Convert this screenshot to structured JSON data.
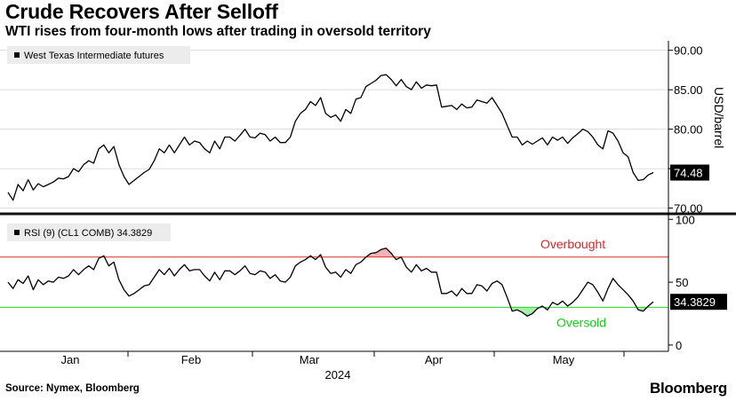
{
  "header": {
    "title": "Crude Recovers After Selloff",
    "subtitle": "WTI rises from four-month lows after trading in oversold territory"
  },
  "footer": {
    "source": "Source: Nymex, Bloomberg",
    "brand": "Bloomberg"
  },
  "chart_data": [
    {
      "type": "line",
      "title": "West Texas Intermediate futures",
      "legend": "West Texas Intermediate futures",
      "ylabel": "USD/barrel",
      "ylim": [
        69.5,
        91.2
      ],
      "yticks": [
        70,
        75,
        80,
        85,
        90
      ],
      "ytick_labels": [
        "70.00",
        "75.00",
        "80.00",
        "85.00",
        "90.00"
      ],
      "last_value_label": "74.48",
      "series": [
        {
          "name": "West Texas Intermediate futures",
          "values": [
            72.0,
            71.0,
            73.0,
            72.2,
            73.6,
            72.3,
            73.1,
            72.7,
            73.0,
            73.3,
            73.8,
            73.7,
            74.0,
            75.0,
            74.6,
            75.5,
            76.0,
            75.7,
            77.5,
            78.0,
            77.0,
            77.8,
            75.5,
            74.0,
            73.0,
            73.5,
            74.0,
            74.5,
            74.9,
            76.0,
            77.5,
            77.0,
            78.0,
            77.0,
            78.0,
            79.0,
            78.0,
            78.5,
            78.3,
            77.5,
            77.0,
            78.5,
            77.5,
            79.0,
            79.0,
            78.5,
            79.2,
            80.0,
            79.0,
            78.9,
            79.5,
            79.3,
            78.5,
            79.0,
            78.3,
            78.3,
            79.0,
            81.0,
            82.0,
            82.5,
            83.5,
            83.0,
            84.0,
            82.0,
            81.5,
            81.8,
            81.0,
            82.5,
            82.0,
            83.8,
            84.0,
            85.4,
            85.8,
            86.2,
            86.8,
            86.9,
            86.3,
            85.5,
            86.3,
            85.4,
            85.0,
            86.0,
            85.2,
            85.6,
            85.5,
            85.6,
            82.8,
            82.9,
            83.0,
            82.5,
            83.2,
            82.7,
            82.8,
            83.7,
            83.5,
            83.3,
            84.0,
            83.0,
            82.0,
            80.5,
            79.0,
            79.0,
            78.0,
            78.5,
            78.1,
            78.5,
            78.9,
            78.0,
            79.0,
            78.6,
            79.0,
            78.2,
            78.9,
            79.4,
            80.0,
            79.7,
            79.0,
            78.0,
            77.5,
            79.8,
            79.5,
            78.5,
            77.0,
            76.5,
            74.5,
            73.5,
            73.6,
            74.2,
            74.5
          ]
        }
      ]
    },
    {
      "type": "line",
      "title": "RSI (9) (CL1 COMB)",
      "legend": "RSI (9) (CL1 COMB) 34.3829",
      "ylim": [
        -5,
        103
      ],
      "yticks": [
        0,
        50,
        100
      ],
      "ytick_labels": [
        "0",
        "50",
        "100"
      ],
      "last_value_label": "34.3829",
      "overbought_level": 70,
      "oversold_level": 30,
      "overbought_label": "Overbought",
      "oversold_label": "Oversold",
      "series": [
        {
          "name": "RSI (9) (CL1 COMB)",
          "values": [
            50.0,
            45.0,
            52.0,
            49.0,
            55.0,
            44.0,
            52.0,
            48.0,
            51.0,
            50.0,
            54.0,
            53.0,
            55.0,
            60.0,
            56.0,
            60.0,
            63.0,
            60.0,
            69.0,
            71.0,
            63.0,
            66.0,
            52.0,
            44.0,
            39.0,
            41.0,
            44.0,
            47.0,
            48.0,
            54.0,
            60.0,
            56.0,
            61.0,
            55.0,
            60.0,
            64.0,
            59.0,
            60.0,
            60.0,
            55.0,
            51.0,
            58.0,
            52.0,
            59.0,
            59.0,
            56.0,
            59.0,
            63.0,
            57.0,
            56.0,
            59.0,
            58.0,
            53.0,
            56.0,
            51.0,
            50.0,
            54.0,
            63.0,
            66.0,
            68.0,
            71.0,
            68.0,
            72.0,
            62.0,
            57.0,
            58.0,
            54.0,
            60.0,
            57.0,
            64.0,
            66.0,
            70.0,
            73.0,
            73.5,
            76.0,
            77.0,
            73.0,
            68.0,
            70.0,
            62.0,
            58.0,
            64.0,
            59.0,
            61.0,
            58.0,
            58.0,
            41.0,
            41.0,
            43.0,
            39.0,
            45.0,
            41.0,
            41.0,
            48.0,
            47.0,
            43.0,
            49.0,
            51.0,
            48.0,
            38.0,
            27.0,
            28.0,
            26.0,
            23.0,
            25.0,
            29.0,
            31.0,
            28.0,
            34.0,
            32.0,
            35.0,
            31.0,
            34.0,
            38.0,
            44.0,
            50.0,
            48.0,
            42.0,
            35.0,
            45.0,
            53.0,
            48.0,
            44.0,
            40.0,
            35.0,
            28.0,
            27.0,
            31.0,
            34.38
          ]
        }
      ]
    }
  ],
  "x_axis": {
    "months": [
      "Jan",
      "Feb",
      "Mar",
      "Apr",
      "May"
    ],
    "year": "2024"
  }
}
